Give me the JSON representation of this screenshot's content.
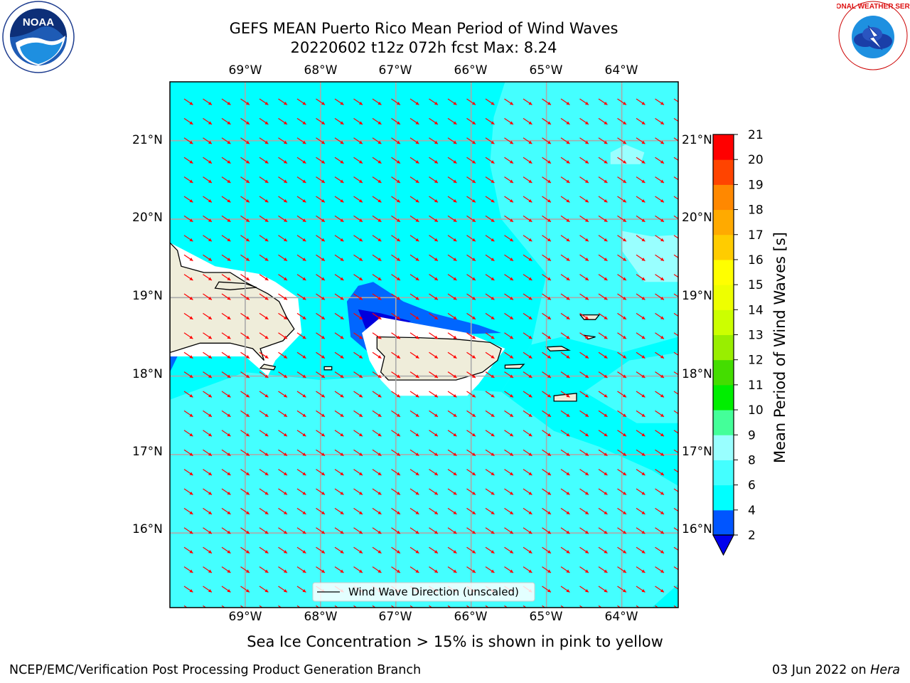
{
  "title": {
    "line1": "GEFS MEAN Puerto Rico Mean Period of Wind Waves",
    "line2": "20220602 t12z 072h fcst   Max: 8.24"
  },
  "map": {
    "lon_ticks": [
      "69°W",
      "68°W",
      "67°W",
      "66°W",
      "65°W",
      "64°W"
    ],
    "lat_ticks": [
      "21°N",
      "20°N",
      "19°N",
      "18°N",
      "17°N",
      "16°N"
    ],
    "lon_range": [
      -70.0,
      -63.25
    ],
    "lat_range": [
      15.05,
      21.75
    ],
    "arrow_color": "#ff0000",
    "legend_label": "Wind Wave Direction (unscaled)"
  },
  "colorbar": {
    "title": "Mean Period of Wind Waves [s]",
    "levels": [
      2,
      4,
      6,
      8,
      9,
      10,
      11,
      12,
      13,
      14,
      15,
      16,
      17,
      18,
      19,
      20,
      21
    ],
    "tick_labels": [
      "2",
      "4",
      "6",
      "8",
      "9",
      "10",
      "11",
      "12",
      "13",
      "14",
      "15",
      "16",
      "17",
      "18",
      "19",
      "20",
      "21"
    ],
    "colors": [
      "#0055ff",
      "#00ffff",
      "#44ffff",
      "#99ffff",
      "#44ff99",
      "#00ee00",
      "#44dd00",
      "#99ee00",
      "#ccff00",
      "#eeff00",
      "#ffff00",
      "#ffcc00",
      "#ffaa00",
      "#ff8800",
      "#ff4400",
      "#ff0000"
    ],
    "under_color": "#0000ee",
    "field_colors": {
      "period_4_6": "#00ffff",
      "period_6_8": "#44ffff",
      "period_8_9": "#99ffff",
      "period_2_4": "#0066ff",
      "period_below_2": "#0000dd",
      "land": "#efedda"
    }
  },
  "logos": {
    "noaa_text": "NOAA",
    "nws_text": "NATIONAL WEATHER SERVICE"
  },
  "note": "Sea Ice Concentration > 15% is shown in pink to yellow",
  "footer": {
    "left": "NCEP/EMC/Verification Post Processing Product Generation Branch",
    "right_date": "03 Jun 2022 on ",
    "right_machine": "Hera"
  }
}
